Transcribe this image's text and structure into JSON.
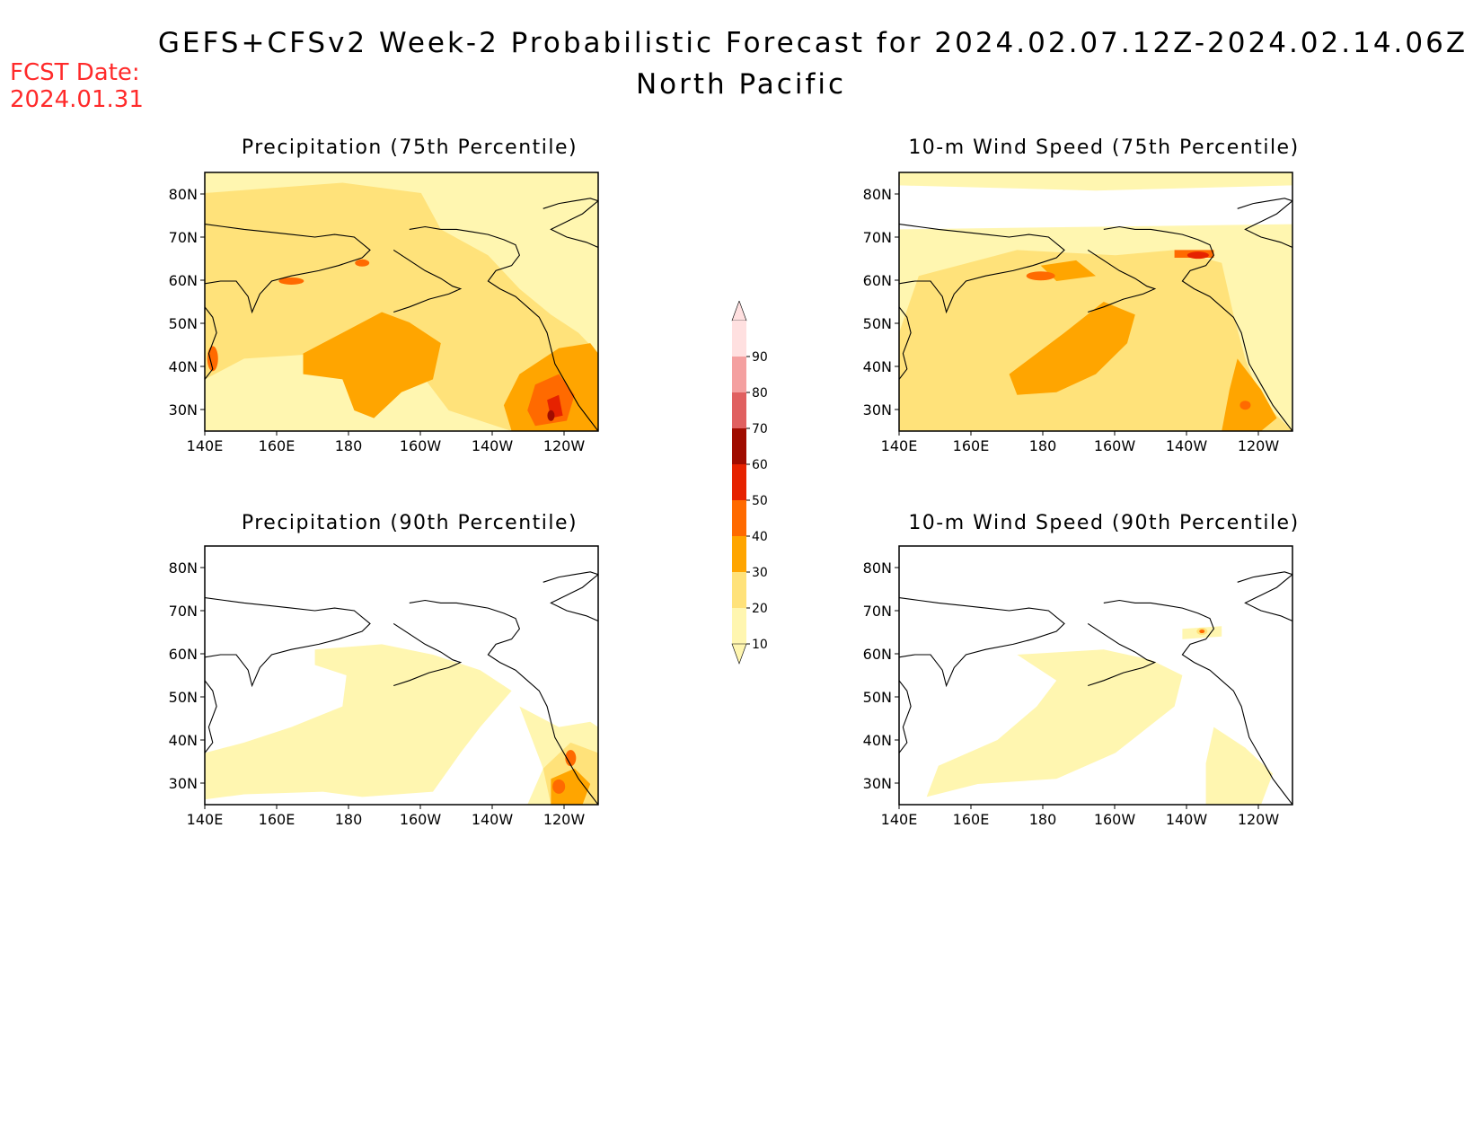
{
  "header": {
    "title": "GEFS+CFSv2 Week-2 Probabilistic Forecast for 2024.02.07.12Z-2024.02.14.06Z",
    "region": "North Pacific",
    "fcst_label": "FCST Date:",
    "fcst_date": "2024.01.31"
  },
  "axes": {
    "lat_labels": [
      "80N",
      "70N",
      "60N",
      "50N",
      "40N",
      "30N"
    ],
    "lon_labels": [
      "140E",
      "160E",
      "180",
      "160W",
      "140W",
      "120W"
    ]
  },
  "panels": [
    {
      "id": "precip75",
      "title": "Precipitation (75th Percentile)"
    },
    {
      "id": "wind75",
      "title": "10-m Wind Speed (75th Percentile)"
    },
    {
      "id": "precip90",
      "title": "Precipitation (90th Percentile)"
    },
    {
      "id": "wind90",
      "title": "10-m Wind Speed (90th Percentile)"
    }
  ],
  "colorbar": {
    "labels": [
      "90",
      "80",
      "70",
      "60",
      "50",
      "40",
      "30",
      "20",
      "10"
    ],
    "colors": {
      "p10": "#fff6b0",
      "p20": "#ffe27a",
      "p30": "#ffa500",
      "p40": "#ff6a00",
      "p50": "#e62200",
      "p60": "#a00c00",
      "p70": "#e06060",
      "p80": "#f4a0a0",
      "p90": "#ffe0e0"
    }
  }
}
